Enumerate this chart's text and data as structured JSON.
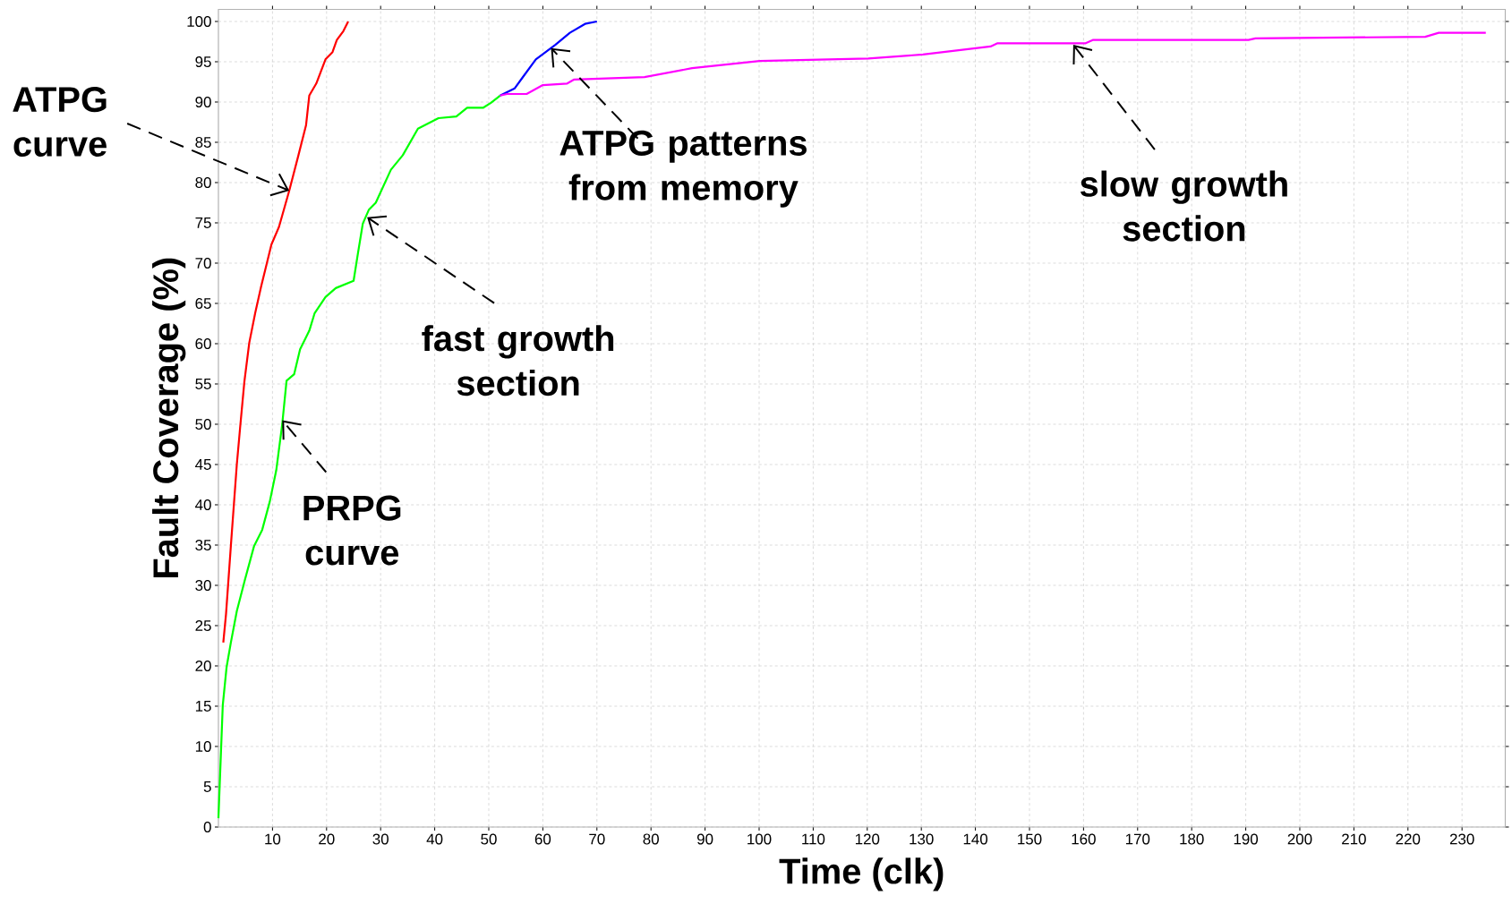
{
  "chart_data": {
    "type": "line",
    "xlabel": "Time (clk)",
    "ylabel": "Fault Coverage (%)",
    "xlim": [
      0,
      238
    ],
    "ylim": [
      0,
      101.5
    ],
    "xticks": [
      10,
      20,
      30,
      40,
      50,
      60,
      70,
      80,
      90,
      100,
      110,
      120,
      130,
      140,
      150,
      160,
      170,
      180,
      190,
      200,
      210,
      220,
      230
    ],
    "yticks": [
      0,
      5,
      10,
      15,
      20,
      25,
      30,
      35,
      40,
      45,
      50,
      55,
      60,
      65,
      70,
      75,
      80,
      85,
      90,
      95,
      100
    ],
    "grid": true,
    "marker": "none",
    "line_style": "solid",
    "series": [
      {
        "color": "#ff0000",
        "x": [
          0.9,
          1.4,
          2.3,
          3.4,
          4.0,
          4.8,
          5.7,
          6.8,
          7.9,
          9.0,
          9.8,
          11.2,
          13.1,
          14.8,
          16.2,
          16.8,
          18.1,
          19.8,
          21.1,
          21.9,
          23.1,
          24.0
        ],
        "values": [
          22.9,
          26.4,
          34.9,
          45,
          49.5,
          55.3,
          60.1,
          63.8,
          67.1,
          70.1,
          72.3,
          74.5,
          79,
          83.4,
          87.1,
          90.8,
          92.3,
          95.3,
          96.2,
          97.7,
          98.8,
          100
        ]
      },
      {
        "color": "#00ff00",
        "x": [
          0,
          0.4,
          0.8,
          1.5,
          2.3,
          3.4,
          4.9,
          6.6,
          8.1,
          9.5,
          10.7,
          11.8,
          12.6,
          14,
          15.1,
          16.8,
          17.8,
          19.8,
          21.7,
          25,
          25.8,
          26.7,
          27.8,
          29.1,
          31.9,
          34.1,
          36.9,
          40.7,
          44,
          46,
          49,
          50.4,
          52.1
        ],
        "values": [
          1.1,
          8.1,
          15.1,
          19.8,
          22.9,
          26.8,
          30.7,
          34.9,
          36.9,
          40.4,
          44.3,
          50,
          55.4,
          56.2,
          59.3,
          61.6,
          63.8,
          65.8,
          66.9,
          67.8,
          71.2,
          74.9,
          76.6,
          77.5,
          81.6,
          83.4,
          86.7,
          88,
          88.2,
          89.3,
          89.3,
          89.9,
          90.8
        ]
      },
      {
        "color": "#0000ff",
        "x": [
          52.1,
          54.8,
          56.2,
          58.7,
          62.3,
          65,
          67.8,
          70
        ],
        "values": [
          90.8,
          91.7,
          93,
          95.3,
          97.1,
          98.6,
          99.7,
          100
        ]
      },
      {
        "color": "#ff00ff",
        "x": [
          52.1,
          53.4,
          57,
          60,
          64.5,
          65.8,
          78.8,
          87.6,
          100.1,
          120.2,
          130.3,
          142.8,
          144.1,
          160.4,
          161.7,
          190.5,
          191.8,
          223.2,
          225.7,
          234.4
        ],
        "values": [
          90.8,
          91,
          91,
          92.1,
          92.3,
          92.8,
          93.1,
          94.2,
          95.1,
          95.4,
          95.9,
          96.9,
          97.3,
          97.3,
          97.7,
          97.7,
          97.9,
          98.1,
          98.6,
          98.6
        ]
      }
    ],
    "annotations": [
      {
        "text": "ATPG curve",
        "x": 13.1,
        "y": 79
      },
      {
        "text": "PRPG curve",
        "x": 11.8,
        "y": 50.5
      },
      {
        "text": "fast growth section",
        "x": 27.5,
        "y": 75.7
      },
      {
        "text": "ATPG patterns from memory",
        "x": 61.5,
        "y": 96.7
      },
      {
        "text": "slow growth section",
        "x": 158.1,
        "y": 97.1
      }
    ]
  }
}
